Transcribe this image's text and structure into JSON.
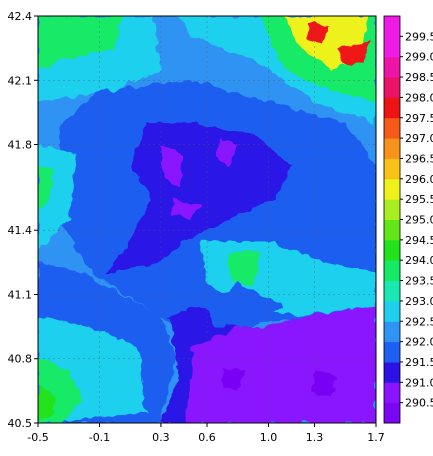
{
  "chart_data": {
    "type": "heatmap",
    "title": "",
    "xlabel": "",
    "ylabel": "",
    "xlim": [
      -0.5,
      1.7
    ],
    "ylim": [
      40.5,
      42.4
    ],
    "x_ticks": [
      "-0.5",
      "-0.1",
      "0.3",
      "0.6",
      "1.0",
      "1.3",
      "1.7"
    ],
    "y_ticks": [
      "40.5",
      "40.8",
      "41.1",
      "41.4",
      "41.8",
      "42.1",
      "42.4"
    ],
    "grid": "dashed",
    "colorbar": {
      "position": "right",
      "levels": [
        {
          "label": "290.5",
          "color": "#7a06f5"
        },
        {
          "label": "291.0",
          "color": "#8a14ff"
        },
        {
          "label": "291.5",
          "color": "#2a12e6"
        },
        {
          "label": "292.0",
          "color": "#1e5ef0"
        },
        {
          "label": "292.5",
          "color": "#2f93f3"
        },
        {
          "label": "293.0",
          "color": "#1fd0ee"
        },
        {
          "label": "293.5",
          "color": "#19e8b4"
        },
        {
          "label": "294.0",
          "color": "#15ea66"
        },
        {
          "label": "294.5",
          "color": "#22e31b"
        },
        {
          "label": "295.0",
          "color": "#63e619"
        },
        {
          "label": "295.5",
          "color": "#a8ee20"
        },
        {
          "label": "296.0",
          "color": "#eef21a"
        },
        {
          "label": "296.5",
          "color": "#f7c216"
        },
        {
          "label": "297.0",
          "color": "#f7931a"
        },
        {
          "label": "297.5",
          "color": "#f55a18"
        },
        {
          "label": "298.0",
          "color": "#ee1414"
        },
        {
          "label": "298.5",
          "color": "#ea1366"
        },
        {
          "label": "299.0",
          "color": "#ee14a8"
        },
        {
          "label": "299.5",
          "color": "#ee1be6"
        }
      ]
    }
  }
}
